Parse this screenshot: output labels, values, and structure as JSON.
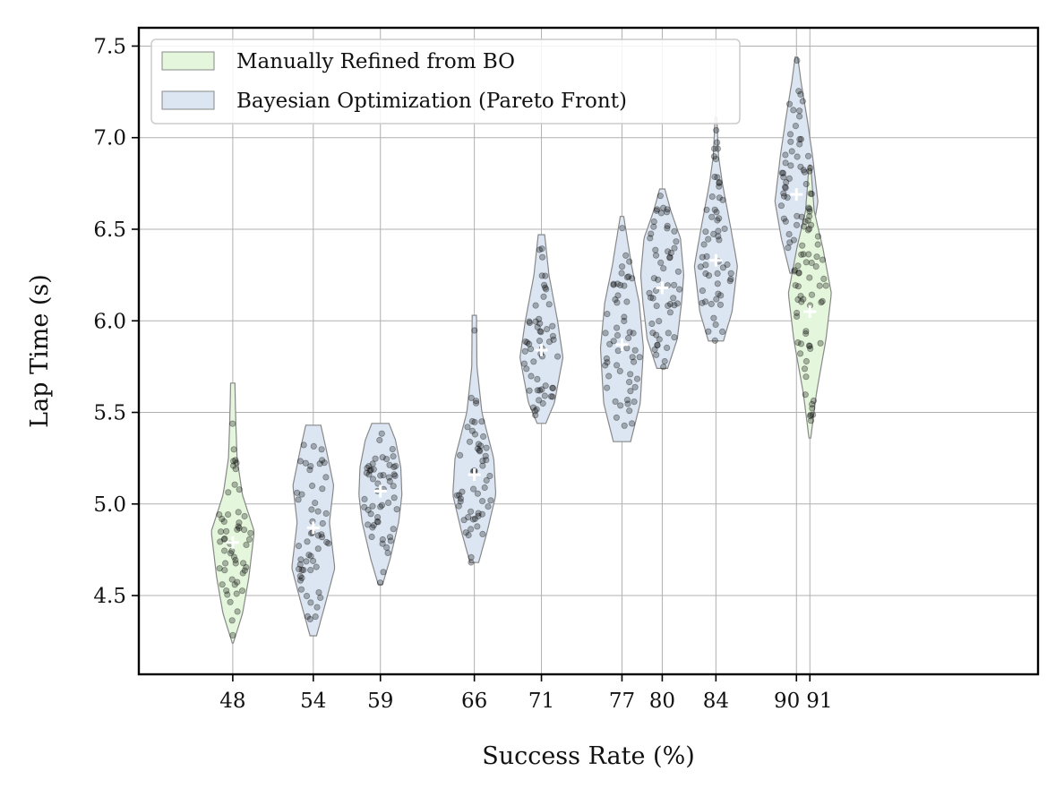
{
  "chart_data": {
    "type": "violin",
    "xlabel": "Success Rate (%)",
    "ylabel": "Lap Time (s)",
    "ylim": [
      4.07,
      7.6
    ],
    "xlim": [
      41,
      108
    ],
    "yticks": [
      "4.5",
      "5.0",
      "5.5",
      "6.0",
      "6.5",
      "7.0",
      "7.5"
    ],
    "xticks": [
      "48",
      "54",
      "59",
      "66",
      "71",
      "77",
      "80",
      "84",
      "90",
      "91"
    ],
    "grid": true,
    "legend": {
      "placement": "top-left",
      "entries": [
        {
          "label": "Manually Refined from BO",
          "color": "#e4f7dc"
        },
        {
          "label": "Bayesian Optimization (Pareto Front)",
          "color": "#dce6f3"
        }
      ]
    },
    "colors": {
      "manual_fill": "#e4f7dc",
      "bo_fill": "#dce6f3",
      "violin_edge": "#888888",
      "point": "#000000",
      "median_marker": "#ffffff"
    },
    "series": [
      {
        "group": "Manually Refined from BO",
        "success_rate": 48,
        "median": 4.79,
        "min": 4.24,
        "max": 5.66,
        "profile": [
          [
            4.24,
            0.02
          ],
          [
            4.4,
            0.45
          ],
          [
            4.6,
            0.75
          ],
          [
            4.85,
            1.0
          ],
          [
            5.05,
            0.45
          ],
          [
            5.25,
            0.2
          ],
          [
            5.45,
            0.14
          ],
          [
            5.66,
            0.1
          ]
        ]
      },
      {
        "group": "Bayesian Optimization (Pareto Front)",
        "success_rate": 54,
        "median": 4.87,
        "min": 4.28,
        "max": 5.43,
        "profile": [
          [
            4.28,
            0.15
          ],
          [
            4.45,
            0.55
          ],
          [
            4.65,
            1.0
          ],
          [
            4.9,
            0.75
          ],
          [
            5.1,
            0.95
          ],
          [
            5.3,
            0.6
          ],
          [
            5.43,
            0.35
          ]
        ]
      },
      {
        "group": "Bayesian Optimization (Pareto Front)",
        "success_rate": 59,
        "median": 5.07,
        "min": 4.56,
        "max": 5.44,
        "profile": [
          [
            4.56,
            0.1
          ],
          [
            4.7,
            0.45
          ],
          [
            4.9,
            0.85
          ],
          [
            5.05,
            1.0
          ],
          [
            5.2,
            0.95
          ],
          [
            5.35,
            0.7
          ],
          [
            5.44,
            0.4
          ]
        ]
      },
      {
        "group": "Bayesian Optimization (Pareto Front)",
        "success_rate": 66,
        "median": 5.16,
        "min": 4.68,
        "max": 6.03,
        "profile": [
          [
            4.68,
            0.2
          ],
          [
            4.85,
            0.6
          ],
          [
            5.05,
            1.0
          ],
          [
            5.25,
            0.9
          ],
          [
            5.5,
            0.35
          ],
          [
            5.75,
            0.12
          ],
          [
            6.03,
            0.1
          ]
        ]
      },
      {
        "group": "Bayesian Optimization (Pareto Front)",
        "success_rate": 71,
        "median": 5.84,
        "min": 5.44,
        "max": 6.47,
        "profile": [
          [
            5.44,
            0.2
          ],
          [
            5.55,
            0.6
          ],
          [
            5.8,
            1.0
          ],
          [
            6.0,
            0.75
          ],
          [
            6.25,
            0.35
          ],
          [
            6.47,
            0.15
          ]
        ]
      },
      {
        "group": "Bayesian Optimization (Pareto Front)",
        "success_rate": 77,
        "median": 5.87,
        "min": 5.34,
        "max": 6.57,
        "profile": [
          [
            5.34,
            0.4
          ],
          [
            5.55,
            0.85
          ],
          [
            5.85,
            1.0
          ],
          [
            6.1,
            0.8
          ],
          [
            6.3,
            0.45
          ],
          [
            6.57,
            0.08
          ]
        ]
      },
      {
        "group": "Bayesian Optimization (Pareto Front)",
        "success_rate": 80,
        "median": 6.18,
        "min": 5.74,
        "max": 6.72,
        "profile": [
          [
            5.74,
            0.25
          ],
          [
            5.9,
            0.7
          ],
          [
            6.1,
            0.9
          ],
          [
            6.25,
            1.0
          ],
          [
            6.45,
            0.85
          ],
          [
            6.6,
            0.4
          ],
          [
            6.72,
            0.12
          ]
        ]
      },
      {
        "group": "Bayesian Optimization (Pareto Front)",
        "success_rate": 84,
        "median": 6.33,
        "min": 5.89,
        "max": 7.11,
        "profile": [
          [
            5.89,
            0.35
          ],
          [
            6.05,
            0.75
          ],
          [
            6.3,
            1.0
          ],
          [
            6.5,
            0.7
          ],
          [
            6.75,
            0.3
          ],
          [
            6.9,
            0.12
          ],
          [
            7.11,
            0.04
          ]
        ]
      },
      {
        "group": "Bayesian Optimization (Pareto Front)",
        "success_rate": 90,
        "median": 6.69,
        "min": 6.26,
        "max": 7.44,
        "profile": [
          [
            6.26,
            0.3
          ],
          [
            6.45,
            0.7
          ],
          [
            6.65,
            1.0
          ],
          [
            6.9,
            0.75
          ],
          [
            7.1,
            0.5
          ],
          [
            7.3,
            0.22
          ],
          [
            7.44,
            0.06
          ]
        ]
      },
      {
        "group": "Manually Refined from BO",
        "success_rate": 91,
        "median": 6.05,
        "min": 5.36,
        "max": 6.85,
        "profile": [
          [
            5.36,
            0.04
          ],
          [
            5.6,
            0.3
          ],
          [
            5.9,
            0.75
          ],
          [
            6.15,
            1.0
          ],
          [
            6.4,
            0.6
          ],
          [
            6.6,
            0.2
          ],
          [
            6.85,
            0.04
          ]
        ]
      }
    ]
  }
}
